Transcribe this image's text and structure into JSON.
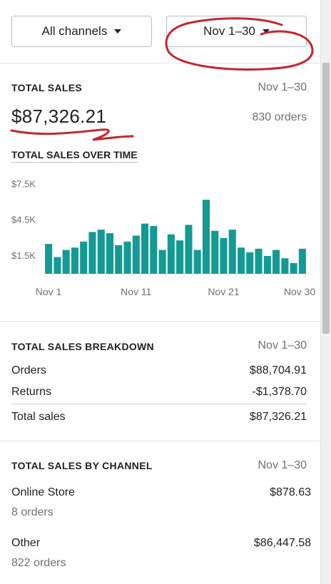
{
  "filters": {
    "channel_label": "All channels",
    "date_label": "Nov 1–30"
  },
  "total_sales": {
    "title": "TOTAL SALES",
    "date": "Nov 1–30",
    "amount": "$87,326.21",
    "orders": "830 orders"
  },
  "chart_data": {
    "type": "bar",
    "title": "TOTAL SALES OVER TIME",
    "categories": [
      "Nov 1",
      "Nov 2",
      "Nov 3",
      "Nov 4",
      "Nov 5",
      "Nov 6",
      "Nov 7",
      "Nov 8",
      "Nov 9",
      "Nov 10",
      "Nov 11",
      "Nov 12",
      "Nov 13",
      "Nov 14",
      "Nov 15",
      "Nov 16",
      "Nov 17",
      "Nov 18",
      "Nov 19",
      "Nov 20",
      "Nov 21",
      "Nov 22",
      "Nov 23",
      "Nov 24",
      "Nov 25",
      "Nov 26",
      "Nov 27",
      "Nov 28",
      "Nov 29",
      "Nov 30"
    ],
    "values": [
      2500,
      1400,
      2000,
      2200,
      2700,
      3500,
      3700,
      3400,
      2400,
      2700,
      3200,
      4200,
      4000,
      2000,
      3300,
      2800,
      4100,
      2000,
      6200,
      3600,
      3000,
      3700,
      2200,
      1800,
      2100,
      1500,
      2000,
      1300,
      900,
      2100
    ],
    "x_ticks": [
      "Nov 1",
      "Nov 11",
      "Nov 21",
      "Nov 30"
    ],
    "y_ticks": [
      "$1.5K",
      "$4.5K",
      "$7.5K"
    ],
    "y_tick_values": [
      1500,
      4500,
      7500
    ],
    "ylim": [
      0,
      8000
    ],
    "bar_color": "#139a94"
  },
  "breakdown": {
    "title": "TOTAL SALES BREAKDOWN",
    "date": "Nov 1–30",
    "orders_label": "Orders",
    "orders_value": "$88,704.91",
    "returns_label": "Returns",
    "returns_value": "-$1,378.70",
    "total_label": "Total sales",
    "total_value": "$87,326.21"
  },
  "by_channel": {
    "title": "TOTAL SALES BY CHANNEL",
    "date": "Nov 1–30",
    "channels": [
      {
        "name": "Online Store",
        "orders": "8 orders",
        "amount": "$878.63"
      },
      {
        "name": "Other",
        "orders": "822 orders",
        "amount": "$86,447.58"
      }
    ]
  },
  "annotation_color": "#c4262e"
}
